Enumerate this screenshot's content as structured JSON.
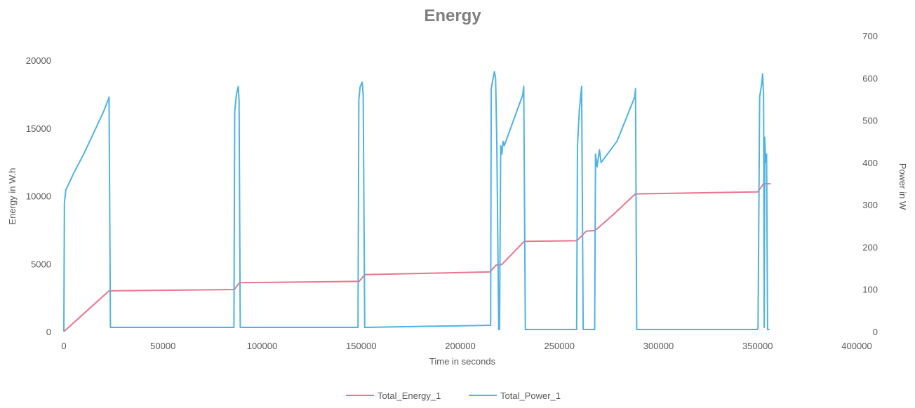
{
  "chart_data": {
    "type": "line",
    "title": "Energy",
    "xlabel": "Time in seconds",
    "ylabel": "Energy in W.h",
    "y2label": "Power in W",
    "xlim": [
      0,
      400000
    ],
    "ylim": [
      0,
      20000
    ],
    "y2lim": [
      0,
      700
    ],
    "x_ticks": [
      "0",
      "50000",
      "100000",
      "150000",
      "200000",
      "250000",
      "300000",
      "350000",
      "400000"
    ],
    "y_ticks": [
      "0",
      "5000",
      "10000",
      "15000",
      "20000"
    ],
    "y2_ticks": [
      "0",
      "100",
      "200",
      "300",
      "400",
      "500",
      "600",
      "700"
    ],
    "grid": false,
    "legend": "bottom",
    "colors": {
      "energy": "#e8768f",
      "power": "#4eb3e3"
    },
    "series": [
      {
        "name": "Total_Energy_1",
        "axis": "left",
        "color": "#e8768f",
        "x": [
          0,
          22800,
          86000,
          88600,
          149000,
          151800,
          215000,
          218000,
          221000,
          232200,
          258800,
          263500,
          268000,
          277000,
          288300,
          350000,
          353000,
          356500
        ],
        "y": [
          0,
          3000,
          3100,
          3600,
          3700,
          4200,
          4400,
          4900,
          4950,
          6650,
          6700,
          7400,
          7450,
          8600,
          10150,
          10300,
          10900,
          10900
        ]
      },
      {
        "name": "Total_Power_1",
        "axis": "right",
        "color": "#4eb3e3",
        "x": [
          0,
          300,
          1000,
          2500,
          5000,
          10000,
          15000,
          20000,
          22500,
          22800,
          23500,
          85800,
          86200,
          87000,
          88000,
          88400,
          89000,
          148400,
          148800,
          149500,
          150500,
          151000,
          151800,
          215300,
          215600,
          216400,
          217200,
          217800,
          218400,
          219400,
          219800,
          220400,
          221000,
          221600,
          222200,
          231500,
          232000,
          232800,
          258700,
          259100,
          260000,
          261200,
          262000,
          263500,
          267800,
          268200,
          269000,
          270200,
          271000,
          279000,
          288000,
          288400,
          289000,
          349800,
          350200,
          351000,
          352000,
          352500,
          353000,
          353300,
          353600,
          354000,
          354500,
          355000,
          356000
        ],
        "y": [
          0,
          305,
          335,
          350,
          375,
          420,
          470,
          520,
          550,
          555,
          10,
          10,
          520,
          560,
          580,
          545,
          10,
          10,
          550,
          580,
          590,
          560,
          10,
          15,
          575,
          595,
          615,
          600,
          450,
          5,
          5,
          440,
          420,
          450,
          440,
          560,
          580,
          5,
          5,
          440,
          520,
          580,
          5,
          5,
          5,
          420,
          390,
          430,
          400,
          450,
          555,
          575,
          5,
          5,
          10,
          555,
          585,
          610,
          560,
          10,
          460,
          400,
          420,
          5,
          5
        ]
      }
    ]
  }
}
